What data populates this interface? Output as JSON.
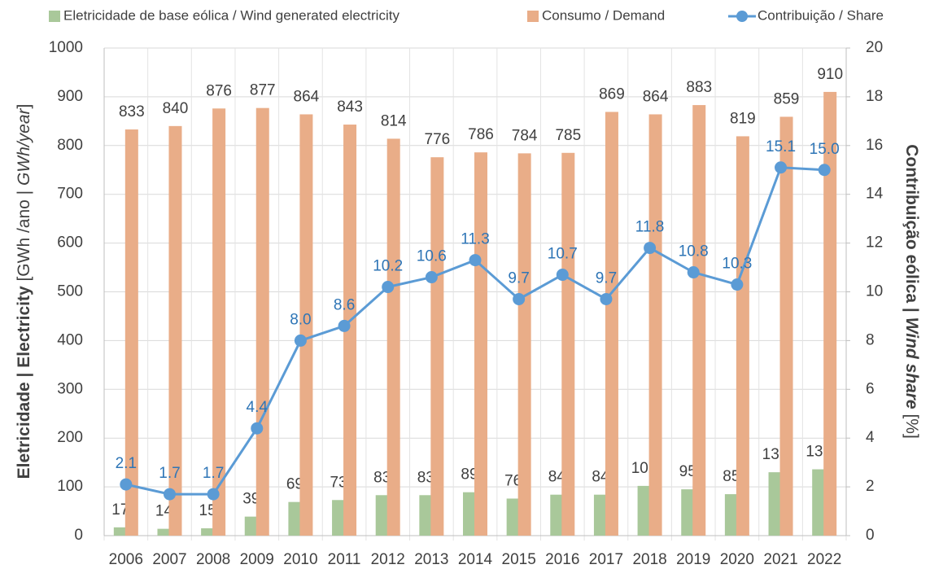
{
  "chart_data": {
    "type": "bar",
    "categories": [
      "2006",
      "2007",
      "2008",
      "2009",
      "2010",
      "2011",
      "2012",
      "2013",
      "2014",
      "2015",
      "2016",
      "2017",
      "2018",
      "2019",
      "2020",
      "2021",
      "2022"
    ],
    "series": [
      {
        "name": "Eletricidade de base eólica / Wind generated electricity",
        "color": "#a9c89a",
        "values": [
          17,
          14,
          15,
          39,
          69,
          73,
          83,
          83,
          89,
          76,
          84,
          84,
          102,
          95,
          85,
          130,
          136
        ]
      },
      {
        "name": "Consumo / Demand",
        "color": "#e9ad88",
        "values": [
          833,
          840,
          876,
          877,
          864,
          843,
          814,
          776,
          786,
          784,
          785,
          869,
          864,
          883,
          819,
          859,
          910
        ]
      },
      {
        "name": "Contribuição / Share",
        "color": "#5b9bd5",
        "type": "line",
        "axis": "y2",
        "values": [
          2.1,
          1.7,
          1.7,
          4.4,
          8.0,
          8.6,
          10.2,
          10.6,
          11.3,
          9.7,
          10.7,
          9.7,
          11.8,
          10.8,
          10.3,
          15.1,
          15.0
        ],
        "value_labels": [
          "2.1",
          "1.7",
          "1.7",
          "4.4",
          "8.0",
          "8.6",
          "10.2",
          "10.6",
          "11.3",
          "9.7",
          "10.7",
          "9.7",
          "11.8",
          "10.8",
          "10.3",
          "15.1",
          "15.0"
        ]
      }
    ],
    "y_label": [
      "Eletricidade | Electricity",
      " [GWh /ano | ",
      "GWh/year",
      "]"
    ],
    "y2_label": [
      "Contribuição eólica | ",
      "Wind share",
      " [%]"
    ],
    "ylim": [
      0,
      1000
    ],
    "yticks": [
      0,
      100,
      200,
      300,
      400,
      500,
      600,
      700,
      800,
      900,
      1000
    ],
    "y2lim": [
      0,
      20
    ],
    "y2ticks": [
      0,
      2,
      4,
      6,
      8,
      10,
      12,
      14,
      16,
      18,
      20
    ],
    "grid": true,
    "legend": "top"
  }
}
